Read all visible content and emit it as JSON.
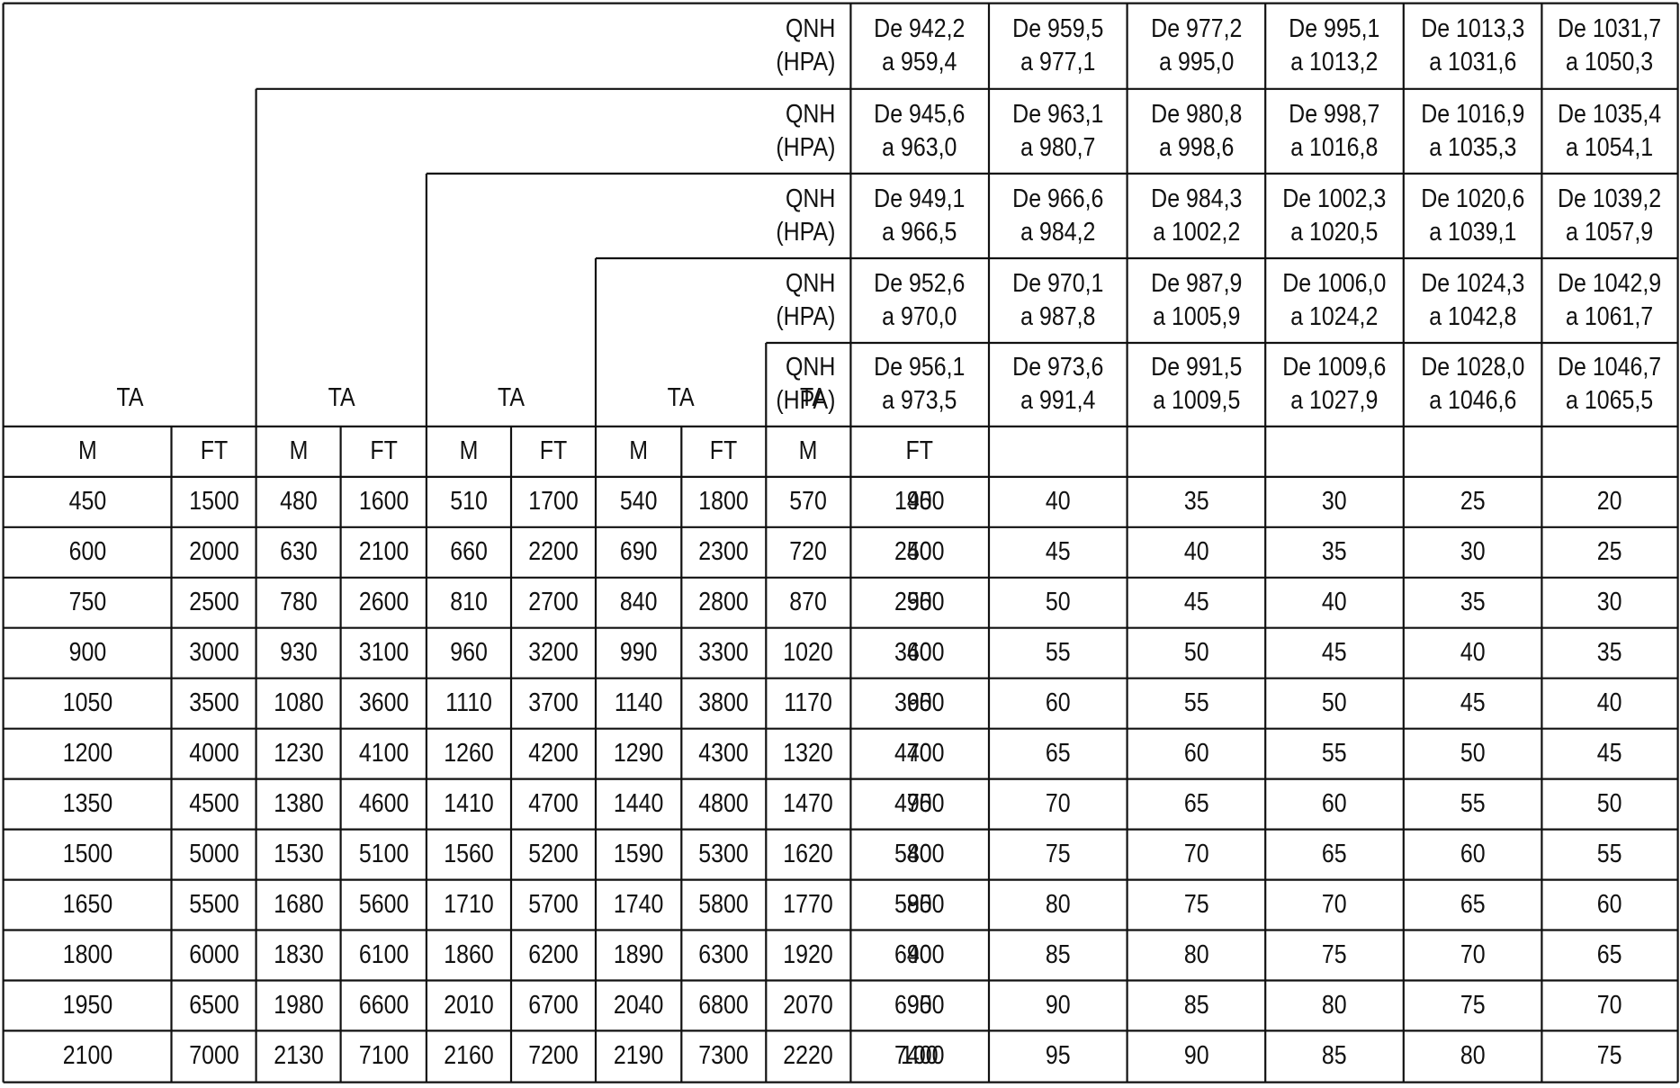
{
  "header": {
    "qnh_label_line1": "QNH",
    "qnh_label_line2": "(HPA)",
    "ta_label": "TA",
    "col_m_label": "M",
    "col_ft_label": "FT",
    "qnh_tiers": [
      {
        "ranges": [
          {
            "from": "De 942,2",
            "to": "a 959,4"
          },
          {
            "from": "De 959,5",
            "to": "a 977,1"
          },
          {
            "from": "De 977,2",
            "to": "a 995,0"
          },
          {
            "from": "De 995,1",
            "to": "a 1013,2"
          },
          {
            "from": "De 1013,3",
            "to": "a 1031,6"
          },
          {
            "from": "De 1031,7",
            "to": "a 1050,3"
          }
        ]
      },
      {
        "ranges": [
          {
            "from": "De 945,6",
            "to": "a 963,0"
          },
          {
            "from": "De 963,1",
            "to": "a 980,7"
          },
          {
            "from": "De 980,8",
            "to": "a 998,6"
          },
          {
            "from": "De 998,7",
            "to": "a 1016,8"
          },
          {
            "from": "De 1016,9",
            "to": "a 1035,3"
          },
          {
            "from": "De 1035,4",
            "to": "a 1054,1"
          }
        ]
      },
      {
        "ranges": [
          {
            "from": "De 949,1",
            "to": "a 966,5"
          },
          {
            "from": "De 966,6",
            "to": "a 984,2"
          },
          {
            "from": "De 984,3",
            "to": "a 1002,2"
          },
          {
            "from": "De 1002,3",
            "to": "a 1020,5"
          },
          {
            "from": "De 1020,6",
            "to": "a 1039,1"
          },
          {
            "from": "De 1039,2",
            "to": "a 1057,9"
          }
        ]
      },
      {
        "ranges": [
          {
            "from": "De 952,6",
            "to": "a 970,0"
          },
          {
            "from": "De 970,1",
            "to": "a 987,8"
          },
          {
            "from": "De 987,9",
            "to": "a 1005,9"
          },
          {
            "from": "De 1006,0",
            "to": "a 1024,2"
          },
          {
            "from": "De 1024,3",
            "to": "a 1042,8"
          },
          {
            "from": "De 1042,9",
            "to": "a 1061,7"
          }
        ]
      },
      {
        "ranges": [
          {
            "from": "De 956,1",
            "to": "a 973,5"
          },
          {
            "from": "De 973,6",
            "to": "a 991,4"
          },
          {
            "from": "De 991,5",
            "to": "a 1009,5"
          },
          {
            "from": "De 1009,6",
            "to": "a 1027,9"
          },
          {
            "from": "De 1028,0",
            "to": "a 1046,6"
          },
          {
            "from": "De 1046,7",
            "to": "a 1065,5"
          }
        ]
      }
    ]
  },
  "rows": [
    {
      "alt": [
        "450",
        "1500",
        "480",
        "1600",
        "510",
        "1700",
        "540",
        "1800",
        "570",
        "1900"
      ],
      "levels": [
        "45",
        "40",
        "35",
        "30",
        "25",
        "20"
      ]
    },
    {
      "alt": [
        "600",
        "2000",
        "630",
        "2100",
        "660",
        "2200",
        "690",
        "2300",
        "720",
        "2400"
      ],
      "levels": [
        "50",
        "45",
        "40",
        "35",
        "30",
        "25"
      ]
    },
    {
      "alt": [
        "750",
        "2500",
        "780",
        "2600",
        "810",
        "2700",
        "840",
        "2800",
        "870",
        "2900"
      ],
      "levels": [
        "55",
        "50",
        "45",
        "40",
        "35",
        "30"
      ]
    },
    {
      "alt": [
        "900",
        "3000",
        "930",
        "3100",
        "960",
        "3200",
        "990",
        "3300",
        "1020",
        "3400"
      ],
      "levels": [
        "60",
        "55",
        "50",
        "45",
        "40",
        "35"
      ]
    },
    {
      "alt": [
        "1050",
        "3500",
        "1080",
        "3600",
        "1110",
        "3700",
        "1140",
        "3800",
        "1170",
        "3900"
      ],
      "levels": [
        "65",
        "60",
        "55",
        "50",
        "45",
        "40"
      ]
    },
    {
      "alt": [
        "1200",
        "4000",
        "1230",
        "4100",
        "1260",
        "4200",
        "1290",
        "4300",
        "1320",
        "4400"
      ],
      "levels": [
        "70",
        "65",
        "60",
        "55",
        "50",
        "45"
      ]
    },
    {
      "alt": [
        "1350",
        "4500",
        "1380",
        "4600",
        "1410",
        "4700",
        "1440",
        "4800",
        "1470",
        "4900"
      ],
      "levels": [
        "75",
        "70",
        "65",
        "60",
        "55",
        "50"
      ]
    },
    {
      "alt": [
        "1500",
        "5000",
        "1530",
        "5100",
        "1560",
        "5200",
        "1590",
        "5300",
        "1620",
        "5400"
      ],
      "levels": [
        "80",
        "75",
        "70",
        "65",
        "60",
        "55"
      ]
    },
    {
      "alt": [
        "1650",
        "5500",
        "1680",
        "5600",
        "1710",
        "5700",
        "1740",
        "5800",
        "1770",
        "5900"
      ],
      "levels": [
        "85",
        "80",
        "75",
        "70",
        "65",
        "60"
      ]
    },
    {
      "alt": [
        "1800",
        "6000",
        "1830",
        "6100",
        "1860",
        "6200",
        "1890",
        "6300",
        "1920",
        "6400"
      ],
      "levels": [
        "90",
        "85",
        "80",
        "75",
        "70",
        "65"
      ]
    },
    {
      "alt": [
        "1950",
        "6500",
        "1980",
        "6600",
        "2010",
        "6700",
        "2040",
        "6800",
        "2070",
        "6900"
      ],
      "levels": [
        "95",
        "90",
        "85",
        "80",
        "75",
        "70"
      ]
    },
    {
      "alt": [
        "2100",
        "7000",
        "2130",
        "7100",
        "2160",
        "7200",
        "2190",
        "7300",
        "2220",
        "7400"
      ],
      "levels": [
        "100",
        "95",
        "90",
        "85",
        "80",
        "75"
      ]
    }
  ]
}
